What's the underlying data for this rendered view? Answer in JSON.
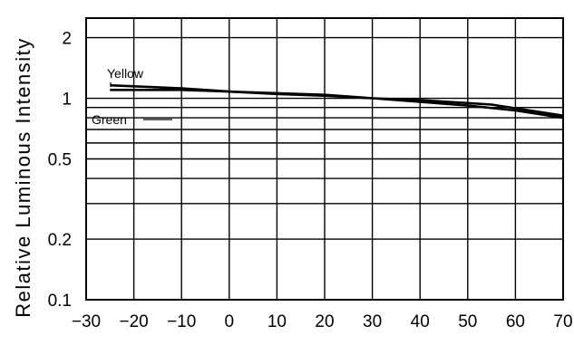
{
  "chart_data": {
    "type": "line",
    "title": "",
    "xlabel": "",
    "ylabel": "Relative Luminous Intensity",
    "x_ticks": [
      "−30",
      "−20",
      "−10",
      "0",
      "10",
      "20",
      "30",
      "40",
      "50",
      "60",
      "70"
    ],
    "y_ticks": [
      "0.1",
      "0.2",
      "0.5",
      "1",
      "2"
    ],
    "xlim": [
      -30,
      70
    ],
    "ylim": [
      0.1,
      2.5
    ],
    "y_scale": "log",
    "grid": true,
    "series": [
      {
        "name": "Yellow",
        "x": [
          -25,
          -10,
          0,
          10,
          20,
          30,
          40,
          50,
          60,
          70
        ],
        "y": [
          1.16,
          1.12,
          1.08,
          1.05,
          1.03,
          1.0,
          0.96,
          0.92,
          0.87,
          0.8
        ]
      },
      {
        "name": "Green",
        "x": [
          -25,
          -10,
          0,
          10,
          20,
          30,
          40,
          55,
          70
        ],
        "y": [
          1.1,
          1.1,
          1.08,
          1.06,
          1.04,
          1.0,
          0.98,
          0.93,
          0.82
        ]
      }
    ]
  }
}
